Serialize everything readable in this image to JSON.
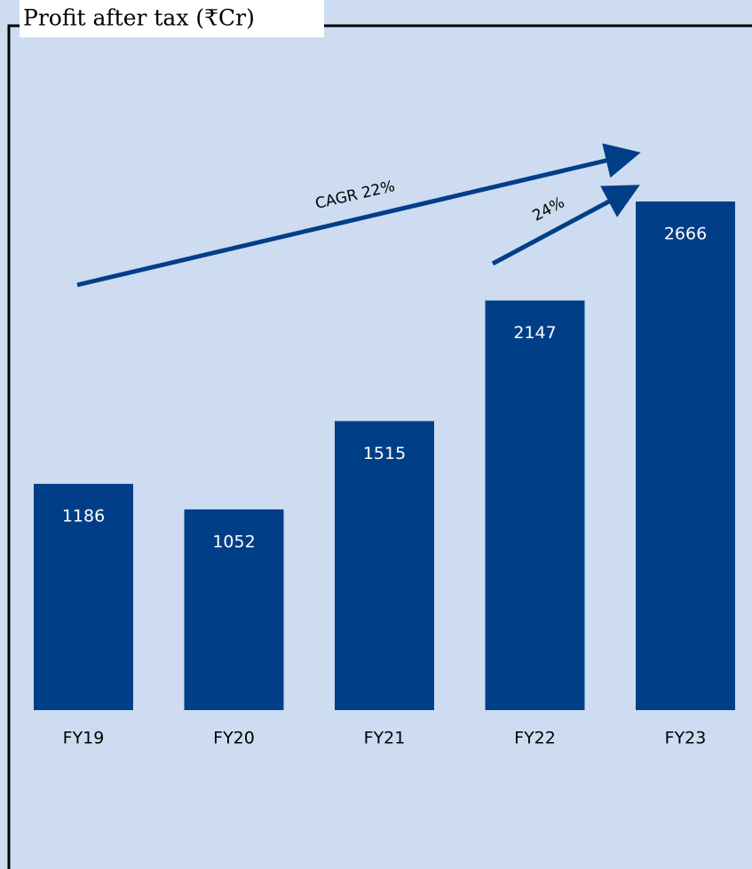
{
  "chart_data": {
    "type": "bar",
    "title": "Profit after tax (₹Cr)",
    "categories": [
      "FY19",
      "FY20",
      "FY21",
      "FY22",
      "FY23"
    ],
    "values": [
      1186,
      1052,
      1515,
      2147,
      2666
    ],
    "color": "#003f87",
    "annotations": [
      "CAGR 22%",
      "24%"
    ]
  }
}
